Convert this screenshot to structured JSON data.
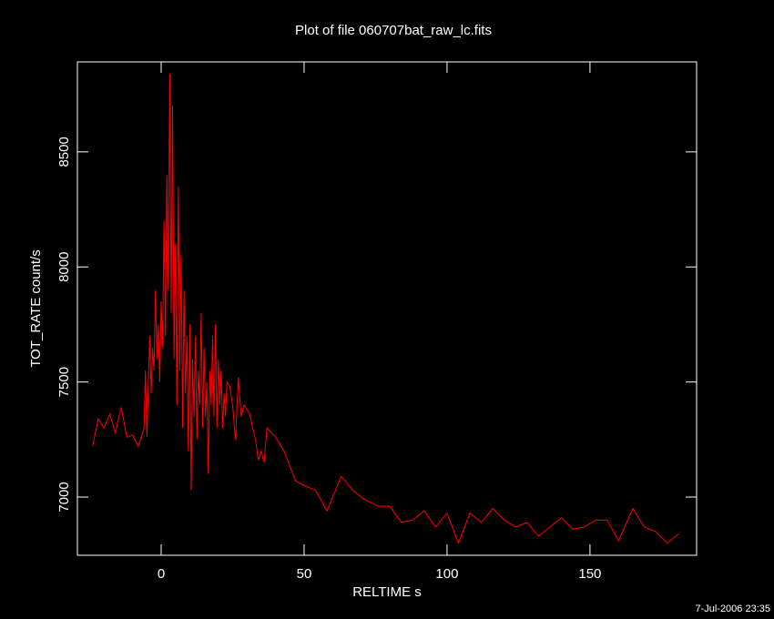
{
  "chart_data": {
    "type": "line",
    "title": "Plot of file 060707bat_raw_lc.fits",
    "x_label": "RELTIME  s",
    "y_label": "TOT_RATE  count/s",
    "footer": "7-Jul-2006 23:35",
    "xlim": [
      -29.3,
      187.3
    ],
    "ylim": [
      6747,
      8891
    ],
    "xticks": [
      0,
      50,
      100,
      150
    ],
    "yticks": [
      7000,
      7500,
      8000,
      8500
    ],
    "x": [
      -24,
      -22,
      -20,
      -18,
      -16,
      -14,
      -12,
      -10,
      -8,
      -7,
      -6,
      -5.5,
      -5,
      -4.5,
      -4,
      -3.5,
      -3,
      -2.5,
      -2,
      -1.5,
      -1,
      -0.5,
      0,
      0.5,
      1,
      1.5,
      2,
      2.5,
      3,
      3.5,
      4,
      4.5,
      5,
      5.5,
      6,
      6.5,
      7,
      7.5,
      8,
      8.5,
      9,
      9.5,
      10,
      10.5,
      11,
      11.5,
      12,
      12.5,
      13,
      13.5,
      14,
      14.5,
      15,
      15.5,
      16,
      16.5,
      17,
      17.5,
      18,
      18.5,
      19,
      19.5,
      20,
      20.5,
      21,
      21.5,
      22,
      22.5,
      23,
      24,
      25,
      26,
      27,
      28,
      29,
      30,
      31,
      32,
      33,
      34,
      35,
      36,
      37,
      40,
      43,
      47,
      50,
      54,
      58,
      63,
      67,
      71,
      76,
      80,
      84,
      88,
      92,
      96,
      100,
      104,
      108,
      112,
      116,
      120,
      124,
      128,
      132,
      136,
      140,
      144,
      148,
      152,
      156,
      160,
      165,
      169,
      173,
      177,
      181
    ],
    "series": [
      {
        "name": "TOT_RATE",
        "color": "#ff0000",
        "values": [
          7220,
          7340,
          7300,
          7360,
          7280,
          7390,
          7260,
          7270,
          7220,
          7260,
          7300,
          7550,
          7260,
          7480,
          7700,
          7450,
          7650,
          7550,
          7900,
          7600,
          7750,
          7500,
          7850,
          7650,
          8200,
          7700,
          8400,
          7900,
          8840,
          7800,
          8700,
          7600,
          8100,
          7400,
          8350,
          7550,
          8050,
          7300,
          7900,
          7450,
          7700,
          7200,
          7750,
          7030,
          7600,
          7350,
          7700,
          7250,
          7550,
          7400,
          7800,
          7300,
          7650,
          7350,
          7500,
          7100,
          7550,
          7400,
          7700,
          7350,
          7750,
          7300,
          7600,
          7400,
          7550,
          7300,
          7450,
          7350,
          7500,
          7480,
          7400,
          7250,
          7520,
          7350,
          7400,
          7380,
          7360,
          7300,
          7250,
          7160,
          7200,
          7150,
          7300,
          7260,
          7200,
          7070,
          7050,
          7030,
          6940,
          7090,
          7030,
          6990,
          6960,
          6960,
          6890,
          6900,
          6940,
          6870,
          6930,
          6800,
          6930,
          6890,
          6950,
          6900,
          6870,
          6890,
          6830,
          6870,
          6910,
          6860,
          6870,
          6900,
          6900,
          6810,
          6950,
          6870,
          6850,
          6800,
          6840
        ]
      }
    ]
  }
}
